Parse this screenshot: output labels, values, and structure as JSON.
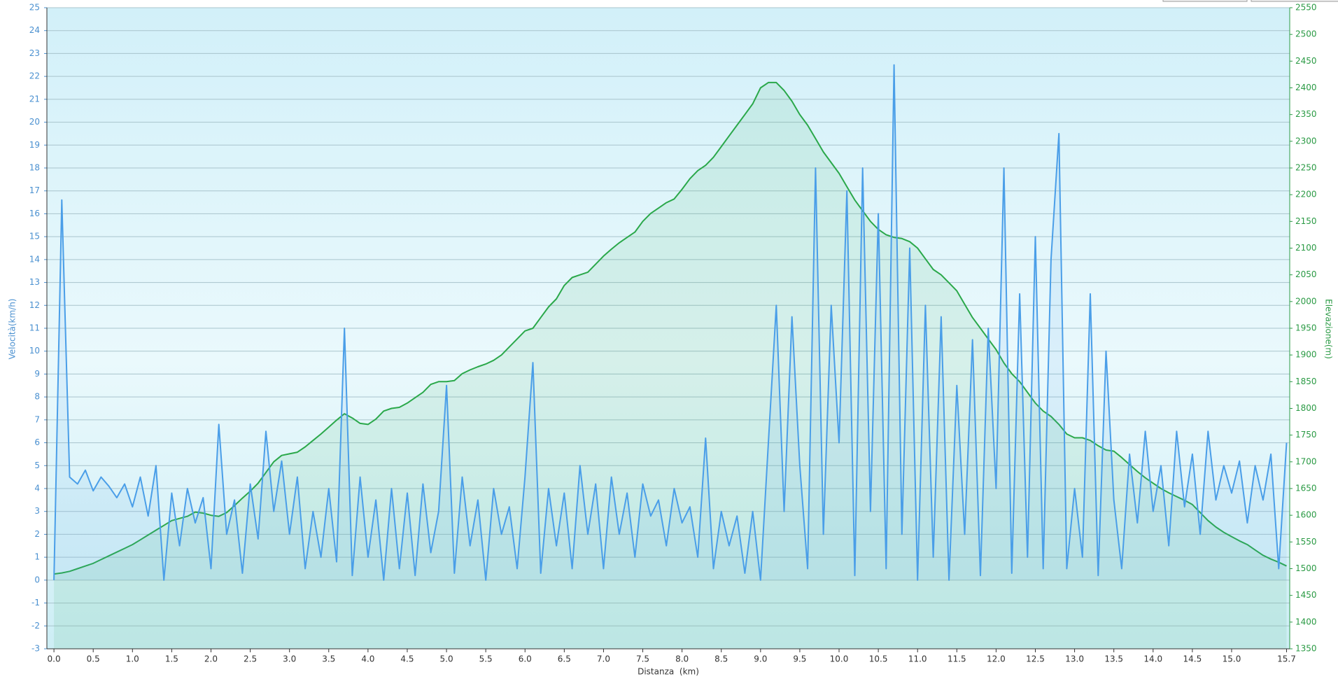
{
  "chart_data": {
    "type": "line",
    "x_label": "Distanza  (km)",
    "y_label": "Velocità(km/h)",
    "y2_label": "Elevazione(m)",
    "grid": true,
    "xlim": [
      -0.09,
      15.74
    ],
    "xticks": [
      {
        "value": 0,
        "label": "0.0"
      },
      0.5,
      {
        "value": 1,
        "label": "1.0"
      },
      1.5,
      {
        "value": 2,
        "label": "2.0"
      },
      2.5,
      {
        "value": 3,
        "label": "3.0"
      },
      3.5,
      {
        "value": 4,
        "label": "4.0"
      },
      4.5,
      {
        "value": 5,
        "label": "5.0"
      },
      5.5,
      {
        "value": 6,
        "label": "6.0"
      },
      6.5,
      {
        "value": 7,
        "label": "7.0"
      },
      7.5,
      {
        "value": 8,
        "label": "8.0"
      },
      8.5,
      {
        "value": 9,
        "label": "9.0"
      },
      9.5,
      {
        "value": 10,
        "label": "10.0"
      },
      10.5,
      {
        "value": 11,
        "label": "11.0"
      },
      11.5,
      {
        "value": 12,
        "label": "12.0"
      },
      12.5,
      {
        "value": 13,
        "label": "13.0"
      },
      13.5,
      {
        "value": 14,
        "label": "14.0"
      },
      14.5,
      {
        "value": 15,
        "label": "15.0"
      },
      15.7
    ],
    "ylim": [
      -3,
      25
    ],
    "yticks": [
      -3,
      -2,
      -1,
      0,
      1,
      2,
      3,
      4,
      5,
      6,
      7,
      8,
      9,
      10,
      11,
      12,
      13,
      14,
      15,
      16,
      17,
      18,
      19,
      20,
      21,
      22,
      23,
      24,
      25
    ],
    "y2lim": [
      1350,
      2550
    ],
    "y2ticks": [
      1350,
      1400,
      1450,
      1500,
      1550,
      1600,
      1650,
      1700,
      1750,
      1800,
      1850,
      1900,
      1950,
      2000,
      2050,
      2100,
      2150,
      2200,
      2250,
      2300,
      2350,
      2400,
      2450,
      2500,
      2550
    ],
    "x": [
      0,
      0.1,
      0.2,
      0.3,
      0.4,
      0.5,
      0.6,
      0.7,
      0.8,
      0.9,
      1,
      1.1,
      1.2,
      1.3,
      1.4,
      1.5,
      1.6,
      1.7,
      1.8,
      1.9,
      2,
      2.1,
      2.2,
      2.3,
      2.4,
      2.5,
      2.6,
      2.7,
      2.8,
      2.9,
      3,
      3.1,
      3.2,
      3.3,
      3.4,
      3.5,
      3.6,
      3.7,
      3.8,
      3.9,
      4,
      4.1,
      4.2,
      4.3,
      4.4,
      4.5,
      4.6,
      4.7,
      4.8,
      4.9,
      5,
      5.1,
      5.2,
      5.3,
      5.4,
      5.5,
      5.6,
      5.7,
      5.8,
      5.9,
      6,
      6.1,
      6.2,
      6.3,
      6.4,
      6.5,
      6.6,
      6.7,
      6.8,
      6.9,
      7,
      7.1,
      7.2,
      7.3,
      7.4,
      7.5,
      7.6,
      7.7,
      7.8,
      7.9,
      8,
      8.1,
      8.2,
      8.3,
      8.4,
      8.5,
      8.6,
      8.7,
      8.8,
      8.9,
      9,
      9.1,
      9.2,
      9.3,
      9.4,
      9.5,
      9.6,
      9.7,
      9.8,
      9.9,
      10,
      10.1,
      10.2,
      10.3,
      10.4,
      10.5,
      10.6,
      10.7,
      10.8,
      10.9,
      11,
      11.1,
      11.2,
      11.3,
      11.4,
      11.5,
      11.6,
      11.7,
      11.8,
      11.9,
      12,
      12.1,
      12.2,
      12.3,
      12.4,
      12.5,
      12.6,
      12.7,
      12.8,
      12.9,
      13,
      13.1,
      13.2,
      13.3,
      13.4,
      13.5,
      13.6,
      13.7,
      13.8,
      13.9,
      14,
      14.1,
      14.2,
      14.3,
      14.4,
      14.5,
      14.6,
      14.7,
      14.8,
      14.9,
      15,
      15.1,
      15.2,
      15.3,
      15.4,
      15.5,
      15.6,
      15.7
    ],
    "series": [
      {
        "color": "#2aa84a",
        "axis": "y2",
        "values": [
          1490,
          1492,
          1495,
          1500,
          1505,
          1510,
          1517,
          1524,
          1531,
          1538,
          1545,
          1554,
          1563,
          1572,
          1581,
          1590,
          1594,
          1598,
          1606,
          1604,
          1600,
          1598,
          1605,
          1618,
          1632,
          1645,
          1660,
          1680,
          1700,
          1712,
          1715,
          1718,
          1728,
          1740,
          1752,
          1765,
          1778,
          1790,
          1782,
          1772,
          1770,
          1780,
          1795,
          1800,
          1802,
          1810,
          1820,
          1830,
          1845,
          1850,
          1850,
          1852,
          1865,
          1872,
          1878,
          1883,
          1890,
          1900,
          1915,
          1930,
          1945,
          1950,
          1970,
          1990,
          2005,
          2030,
          2045,
          2050,
          2055,
          2070,
          2085,
          2098,
          2110,
          2120,
          2130,
          2150,
          2165,
          2175,
          2185,
          2192,
          2210,
          2230,
          2245,
          2255,
          2270,
          2290,
          2310,
          2330,
          2350,
          2370,
          2400,
          2410,
          2410,
          2395,
          2375,
          2350,
          2330,
          2305,
          2280,
          2260,
          2240,
          2215,
          2190,
          2170,
          2150,
          2135,
          2125,
          2120,
          2118,
          2112,
          2100,
          2080,
          2060,
          2050,
          2035,
          2020,
          1995,
          1970,
          1950,
          1930,
          1910,
          1885,
          1865,
          1850,
          1830,
          1810,
          1795,
          1785,
          1770,
          1752,
          1745,
          1745,
          1740,
          1730,
          1722,
          1720,
          1708,
          1695,
          1682,
          1670,
          1660,
          1650,
          1642,
          1635,
          1628,
          1620,
          1605,
          1590,
          1578,
          1568,
          1560,
          1552,
          1545,
          1535,
          1525,
          1518,
          1512,
          1505
        ]
      },
      {
        "color": "#4a9ee8",
        "axis": "y",
        "values": [
          0,
          16.6,
          4.5,
          4.2,
          4.8,
          3.9,
          4.5,
          4.1,
          3.6,
          4.2,
          3.2,
          4.5,
          2.8,
          5.0,
          0,
          3.8,
          1.5,
          4.0,
          2.5,
          3.6,
          0.5,
          6.8,
          2.0,
          3.5,
          0.3,
          4.2,
          1.8,
          6.5,
          3.0,
          5.2,
          2.0,
          4.5,
          0.5,
          3.0,
          1.0,
          4.0,
          0.8,
          11.0,
          0.2,
          4.5,
          1.0,
          3.5,
          0,
          4.0,
          0.5,
          3.8,
          0.2,
          4.2,
          1.2,
          3.0,
          8.5,
          0.3,
          4.5,
          1.5,
          3.5,
          0,
          4.0,
          2.0,
          3.2,
          0.5,
          4.5,
          9.5,
          0.3,
          4.0,
          1.5,
          3.8,
          0.5,
          5.0,
          2.0,
          4.2,
          0.5,
          4.5,
          2.0,
          3.8,
          1.0,
          4.2,
          2.8,
          3.5,
          1.5,
          4.0,
          2.5,
          3.2,
          1.0,
          6.2,
          0.5,
          3.0,
          1.5,
          2.8,
          0.3,
          3.0,
          0,
          6.0,
          12.0,
          3.0,
          11.5,
          5.0,
          0.5,
          18.0,
          2.0,
          12.0,
          6.0,
          17.0,
          0.2,
          18.0,
          3.0,
          16.0,
          0.5,
          22.5,
          2.0,
          14.5,
          0,
          12.0,
          1.0,
          11.5,
          0,
          8.5,
          2.0,
          10.5,
          0.2,
          11.0,
          4.0,
          18.0,
          0.3,
          12.5,
          1.0,
          15.0,
          0.5,
          14.0,
          19.5,
          0.5,
          4.0,
          1.0,
          12.5,
          0.2,
          10.0,
          3.5,
          0.5,
          5.5,
          2.5,
          6.5,
          3.0,
          5.0,
          1.5,
          6.5,
          3.2,
          5.5,
          2.0,
          6.5,
          3.5,
          5.0,
          3.8,
          5.2,
          2.5,
          5.0,
          3.5,
          5.5,
          0.5,
          6.0
        ]
      }
    ]
  }
}
